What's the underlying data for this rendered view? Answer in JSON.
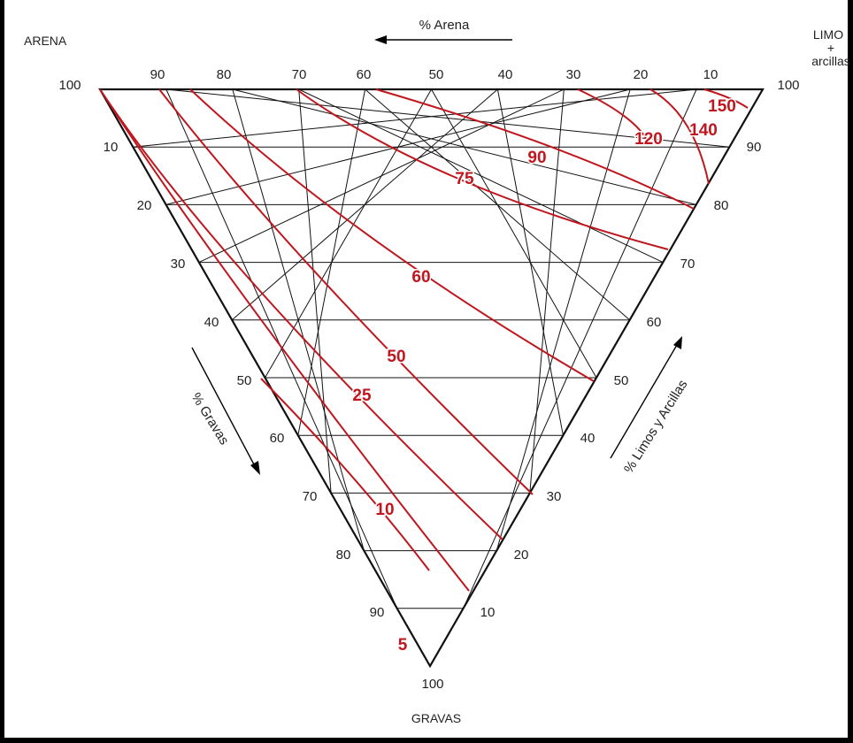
{
  "corners": {
    "arena": "ARENA",
    "limo_line1": "LIMO",
    "limo_line2": "+",
    "limo_line3": "arcillas",
    "gravas": "GRAVAS"
  },
  "axes": {
    "arena_axis": "% Arena",
    "gravas_axis": "% Gravas",
    "limos_axis": "% Limos y Arcillas"
  },
  "ticks": {
    "top": [
      "100",
      "90",
      "80",
      "70",
      "60",
      "50",
      "40",
      "30",
      "20",
      "10",
      "100"
    ],
    "left": [
      "10",
      "20",
      "30",
      "40",
      "50",
      "60",
      "70",
      "80",
      "90",
      "100"
    ],
    "right": [
      "90",
      "80",
      "70",
      "60",
      "50",
      "40",
      "30",
      "20",
      "10"
    ]
  },
  "curve_labels": [
    "150",
    "140",
    "120",
    "90",
    "75",
    "60",
    "50",
    "25",
    "10",
    "5"
  ],
  "colors": {
    "grid": "#111111",
    "curves": "#c0161e",
    "frame": "#000000"
  }
}
